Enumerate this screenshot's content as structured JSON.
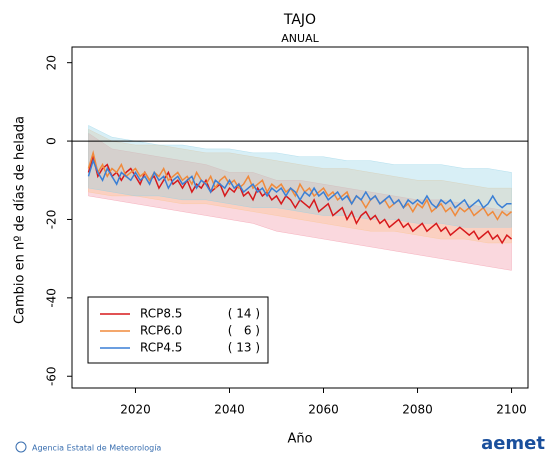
{
  "chart_data": {
    "type": "line",
    "title": "TAJO",
    "subtitle": "ANUAL",
    "x_label": "Año",
    "y_label": "Cambio en nº de días de helada",
    "xlim": [
      2006.5,
      2103.5
    ],
    "ylim": [
      -63,
      24
    ],
    "xticks": [
      2020,
      2040,
      2060,
      2080,
      2100
    ],
    "yticks": [
      20,
      0,
      -20,
      -40,
      -60
    ],
    "hline": 0,
    "legend": "lower-left",
    "x": [
      2010,
      2011,
      2012,
      2013,
      2014,
      2015,
      2016,
      2017,
      2018,
      2019,
      2020,
      2021,
      2022,
      2023,
      2024,
      2025,
      2026,
      2027,
      2028,
      2029,
      2030,
      2031,
      2032,
      2033,
      2034,
      2035,
      2036,
      2037,
      2038,
      2039,
      2040,
      2041,
      2042,
      2043,
      2044,
      2045,
      2046,
      2047,
      2048,
      2049,
      2050,
      2051,
      2052,
      2053,
      2054,
      2055,
      2056,
      2057,
      2058,
      2059,
      2060,
      2061,
      2062,
      2063,
      2064,
      2065,
      2066,
      2067,
      2068,
      2069,
      2070,
      2071,
      2072,
      2073,
      2074,
      2075,
      2076,
      2077,
      2078,
      2079,
      2080,
      2081,
      2082,
      2083,
      2084,
      2085,
      2086,
      2087,
      2088,
      2089,
      2090,
      2091,
      2092,
      2093,
      2094,
      2095,
      2096,
      2097,
      2098,
      2099,
      2100
    ],
    "band_x": [
      2010,
      2015,
      2020,
      2025,
      2030,
      2035,
      2040,
      2045,
      2050,
      2055,
      2060,
      2065,
      2070,
      2075,
      2080,
      2085,
      2090,
      2095,
      2100
    ],
    "series": [
      {
        "name": "RCP8.5",
        "count_label": "( 14 )",
        "color": "#d7191c",
        "band_color": "#f28ea0",
        "values": [
          -8,
          -4,
          -9,
          -7,
          -6,
          -9,
          -8,
          -10,
          -8,
          -7,
          -9,
          -11,
          -8,
          -10,
          -9,
          -12,
          -10,
          -8,
          -11,
          -10,
          -12,
          -10,
          -13,
          -11,
          -12,
          -10,
          -13,
          -12,
          -11,
          -14,
          -12,
          -13,
          -11,
          -14,
          -13,
          -15,
          -12,
          -14,
          -13,
          -15,
          -14,
          -16,
          -14,
          -15,
          -17,
          -15,
          -16,
          -17,
          -15,
          -18,
          -17,
          -16,
          -19,
          -18,
          -17,
          -20,
          -18,
          -21,
          -19,
          -18,
          -20,
          -19,
          -21,
          -20,
          -22,
          -21,
          -20,
          -22,
          -21,
          -23,
          -22,
          -21,
          -23,
          -22,
          -21,
          -23,
          -22,
          -24,
          -23,
          -22,
          -23,
          -24,
          -23,
          -25,
          -24,
          -23,
          -25,
          -24,
          -26,
          -24,
          -25
        ],
        "lower": [
          -14,
          -15,
          -16,
          -17,
          -18,
          -19,
          -20,
          -21,
          -23,
          -24,
          -25,
          -26,
          -27,
          -28,
          -29,
          -30,
          -31,
          -32,
          -33
        ],
        "upper": [
          2,
          -2,
          -3,
          -4,
          -5,
          -6,
          -8,
          -8,
          -10,
          -10,
          -11,
          -12,
          -13,
          -14,
          -15,
          -15,
          -16,
          -17,
          -18
        ]
      },
      {
        "name": "RCP6.0",
        "count_label": "(   6 )",
        "color": "#f08a3c",
        "band_color": "#fcc48c",
        "values": [
          -7,
          -3,
          -8,
          -6,
          -9,
          -7,
          -8,
          -6,
          -9,
          -8,
          -7,
          -9,
          -8,
          -10,
          -8,
          -9,
          -7,
          -10,
          -9,
          -8,
          -10,
          -9,
          -11,
          -8,
          -10,
          -11,
          -9,
          -12,
          -10,
          -9,
          -11,
          -10,
          -12,
          -11,
          -9,
          -12,
          -11,
          -10,
          -13,
          -11,
          -12,
          -11,
          -13,
          -12,
          -14,
          -11,
          -13,
          -12,
          -14,
          -13,
          -12,
          -14,
          -13,
          -15,
          -14,
          -13,
          -16,
          -14,
          -15,
          -17,
          -15,
          -14,
          -16,
          -15,
          -17,
          -16,
          -15,
          -17,
          -16,
          -18,
          -16,
          -17,
          -15,
          -18,
          -17,
          -16,
          -18,
          -17,
          -19,
          -17,
          -18,
          -17,
          -19,
          -18,
          -17,
          -19,
          -18,
          -20,
          -18,
          -19,
          -18
        ],
        "lower": [
          -13,
          -14,
          -14,
          -15,
          -16,
          -16,
          -17,
          -18,
          -19,
          -20,
          -21,
          -22,
          -23,
          -23,
          -24,
          -25,
          -25,
          -26,
          -26
        ],
        "upper": [
          3,
          0,
          -1,
          -1,
          -2,
          -3,
          -3,
          -4,
          -5,
          -6,
          -7,
          -7,
          -8,
          -9,
          -10,
          -10,
          -11,
          -12,
          -12
        ]
      },
      {
        "name": "RCP4.5",
        "count_label": "( 13 )",
        "color": "#3a7fd5",
        "band_color": "#8fd0e6",
        "values": [
          -9,
          -5,
          -8,
          -10,
          -7,
          -9,
          -11,
          -8,
          -9,
          -10,
          -8,
          -10,
          -9,
          -11,
          -8,
          -10,
          -9,
          -12,
          -10,
          -9,
          -11,
          -10,
          -9,
          -12,
          -10,
          -11,
          -13,
          -10,
          -11,
          -12,
          -10,
          -12,
          -11,
          -13,
          -12,
          -11,
          -13,
          -12,
          -14,
          -12,
          -13,
          -12,
          -14,
          -12,
          -13,
          -15,
          -13,
          -14,
          -12,
          -14,
          -13,
          -15,
          -14,
          -13,
          -15,
          -14,
          -16,
          -14,
          -15,
          -13,
          -15,
          -14,
          -16,
          -15,
          -14,
          -16,
          -15,
          -17,
          -15,
          -16,
          -15,
          -16,
          -14,
          -16,
          -17,
          -15,
          -16,
          -15,
          -17,
          -16,
          -15,
          -17,
          -16,
          -15,
          -17,
          -16,
          -14,
          -16,
          -17,
          -16,
          -16
        ],
        "lower": [
          -12,
          -13,
          -14,
          -14,
          -15,
          -15,
          -16,
          -17,
          -17,
          -18,
          -19,
          -19,
          -20,
          -20,
          -21,
          -21,
          -22,
          -22,
          -22
        ],
        "upper": [
          4,
          1,
          0,
          -1,
          -1,
          -2,
          -2,
          -3,
          -3,
          -4,
          -4,
          -5,
          -5,
          -6,
          -6,
          -6,
          -7,
          -7,
          -8
        ]
      }
    ],
    "footer_left": "Agencia Estatal de Meteorología",
    "footer_right": "aemet"
  }
}
